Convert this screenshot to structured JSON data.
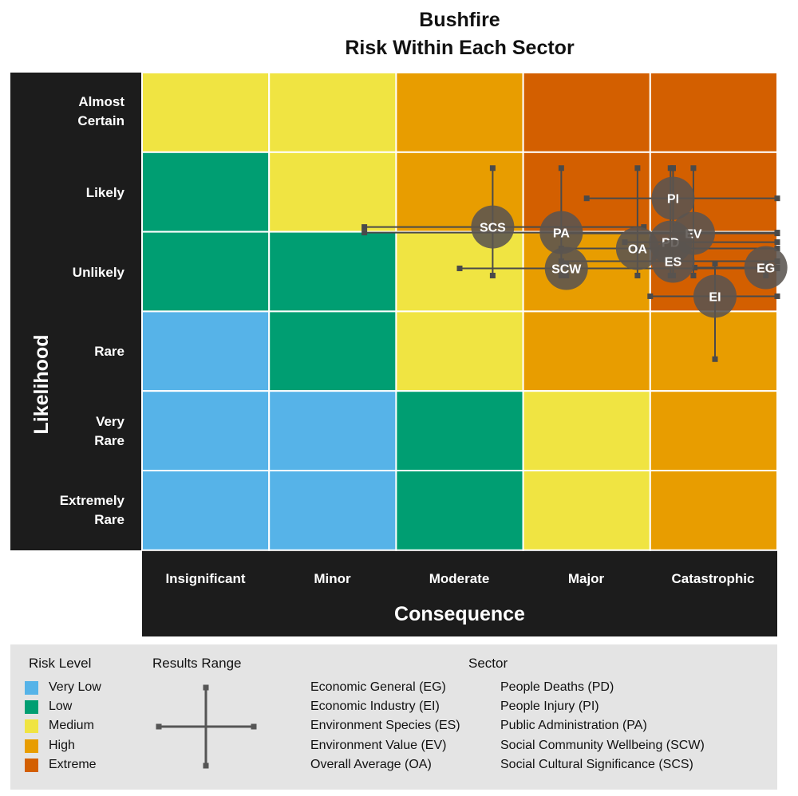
{
  "chart_data": {
    "type": "risk-matrix",
    "title_line1": "Bushfire",
    "title_line2": "Risk Within Each Sector",
    "ylabel": "Likelihood",
    "xlabel": "Consequence",
    "y_categories": [
      "Almost Certain",
      "Likely",
      "Unlikely",
      "Rare",
      "Very Rare",
      "Extremely Rare"
    ],
    "x_categories": [
      "Insignificant",
      "Minor",
      "Moderate",
      "Major",
      "Catastrophic"
    ],
    "risk_colors": {
      "Very Low": "#56b3e8",
      "Low": "#009e72",
      "Medium": "#f0e442",
      "High": "#e89d00",
      "Extreme": "#d35f00"
    },
    "matrix": [
      [
        "Medium",
        "Medium",
        "High",
        "Extreme",
        "Extreme"
      ],
      [
        "Low",
        "Medium",
        "High",
        "Extreme",
        "Extreme"
      ],
      [
        "Low",
        "Low",
        "Medium",
        "High",
        "Extreme"
      ],
      [
        "Very Low",
        "Low",
        "Medium",
        "High",
        "High"
      ],
      [
        "Very Low",
        "Very Low",
        "Low",
        "Medium",
        "High"
      ],
      [
        "Very Low",
        "Very Low",
        "Low",
        "Medium",
        "High"
      ]
    ],
    "points_note": "x: 1=Insignificant .. 5=Catastrophic; y: 1=Extremely Rare .. 6=Almost Certain",
    "points": [
      {
        "label": "SCS",
        "x": 3.26,
        "y": 4.56,
        "x_range": [
          2.25,
          4.45
        ],
        "y_range": [
          3.95,
          5.3
        ]
      },
      {
        "label": "PA",
        "x": 3.8,
        "y": 4.49,
        "x_range": [
          2.25,
          5.81
        ],
        "y_range": [
          3.95,
          5.3
        ]
      },
      {
        "label": "PI",
        "x": 4.68,
        "y": 4.92,
        "x_range": [
          4.0,
          5.81
        ],
        "y_range": [
          3.95,
          5.3
        ]
      },
      {
        "label": "EV",
        "x": 4.84,
        "y": 4.48,
        "x_range": [
          3.8,
          5.81
        ],
        "y_range": [
          3.95,
          5.3
        ]
      },
      {
        "label": "PD",
        "x": 4.66,
        "y": 4.37,
        "x_range": [
          4.3,
          5.81
        ],
        "y_range": [
          3.95,
          5.3
        ]
      },
      {
        "label": "OA",
        "x": 4.4,
        "y": 4.29,
        "x_range": [
          3.8,
          5.81
        ],
        "y_range": [
          3.95,
          5.3
        ]
      },
      {
        "label": "ES",
        "x": 4.68,
        "y": 4.13,
        "x_range": [
          3.8,
          5.81
        ],
        "y_range": [
          3.95,
          5.3
        ]
      },
      {
        "label": "SCW",
        "x": 3.84,
        "y": 4.04,
        "x_range": [
          3.0,
          5.81
        ],
        "y_range": [
          3.95,
          4.1
        ]
      },
      {
        "label": "EG",
        "x": 5.41,
        "y": 4.05,
        "x_range": [
          4.85,
          5.81
        ],
        "y_range": [
          3.95,
          4.1
        ]
      },
      {
        "label": "EI",
        "x": 5.01,
        "y": 3.69,
        "x_range": [
          4.5,
          5.81
        ],
        "y_range": [
          2.9,
          4.1
        ]
      }
    ]
  },
  "legend": {
    "risk_heading": "Risk Level",
    "risk_items": [
      {
        "label": "Very Low",
        "color": "#56b3e8"
      },
      {
        "label": "Low",
        "color": "#009e72"
      },
      {
        "label": "Medium",
        "color": "#f0e442"
      },
      {
        "label": "High",
        "color": "#e89d00"
      },
      {
        "label": "Extreme",
        "color": "#d35f00"
      }
    ],
    "range_heading": "Results Range",
    "sector_heading": "Sector",
    "sector_col1": [
      "Economic General (EG)",
      "Economic Industry (EI)",
      "Environment Species (ES)",
      "Environment Value (EV)",
      "Overall Average (OA)"
    ],
    "sector_col2": [
      "People Deaths (PD)",
      "People Injury (PI)",
      "Public Administration (PA)",
      "Social Community Wellbeing (SCW)",
      "Social Cultural Significance (SCS)"
    ]
  }
}
